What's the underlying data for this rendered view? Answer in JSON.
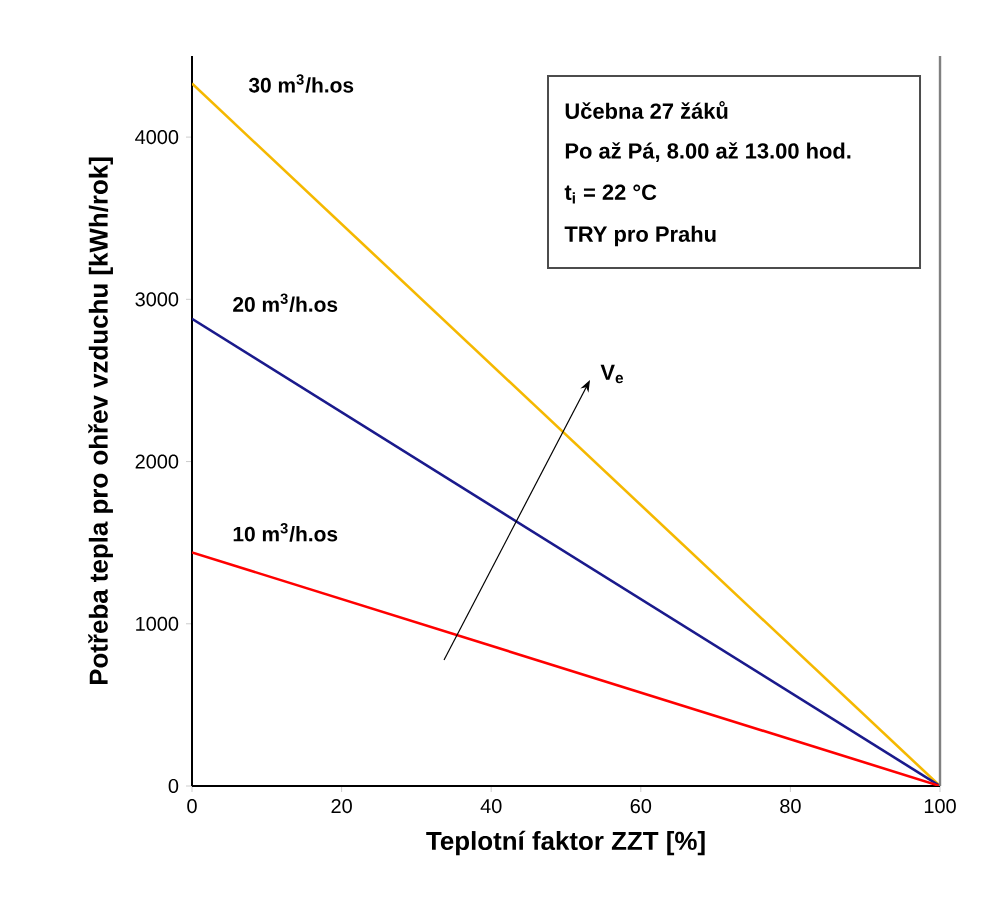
{
  "chart_data": {
    "type": "line",
    "xlabel": "Teplotní faktor ZZT [%]",
    "ylabel": "Potřeba tepla pro ohřev vzduchu [kWh/rok]",
    "x": [
      0,
      100
    ],
    "series": [
      {
        "name": "30 m$^{3}$/h.os",
        "color": "#f5b800",
        "values": [
          4330,
          0
        ]
      },
      {
        "name": "20 m$^{3}$/h.os",
        "color": "#1a1a8c",
        "values": [
          2880,
          0
        ]
      },
      {
        "name": "10 m$^{3}$/h.os",
        "color": "#ff0000",
        "values": [
          1440,
          0
        ]
      }
    ],
    "xlim": [
      0,
      100
    ],
    "ylim": [
      0,
      4500
    ],
    "xticks": [
      0,
      20,
      40,
      60,
      80,
      100
    ],
    "yticks": [
      0,
      1000,
      2000,
      3000,
      4000
    ],
    "grid": false,
    "legend": false,
    "marker": "none",
    "line_style": "solid",
    "annotations": [
      "Učebna 27 žáků",
      "Po až Pá, 8.00 až 13.00 hod.",
      "t$_{i}$ = 22 °C",
      "TRY pro Prahu",
      "V$_{e}$"
    ]
  }
}
